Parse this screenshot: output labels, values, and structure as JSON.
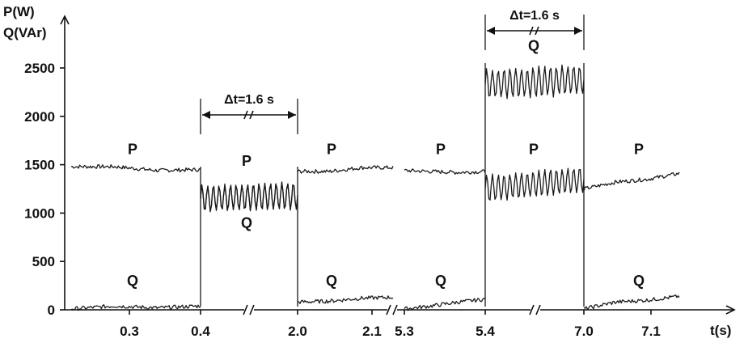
{
  "chart_data": {
    "type": "line",
    "title": "",
    "ylabel": [
      "P(W)",
      "Q(VAr)"
    ],
    "xlabel": "t(s)",
    "ylim": [
      0,
      2500
    ],
    "yticks": [
      0,
      500,
      1000,
      1500,
      2000,
      2500
    ],
    "grid": false,
    "x_segments": [
      {
        "from": 0.25,
        "to": 0.4
      },
      {
        "from": 2.0,
        "to": 2.15
      },
      {
        "from": 5.25,
        "to": 5.4
      },
      {
        "from": 7.0,
        "to": 7.15
      }
    ],
    "xticks": [
      "0.3",
      "0.4",
      "2.0",
      "2.1",
      "5.3",
      "5.4",
      "7.0",
      "7.1"
    ],
    "series": [
      {
        "name": "P",
        "segments": [
          {
            "x": [
              0.25,
              0.3,
              0.35,
              0.4
            ],
            "y": [
              1480,
              1480,
              1440,
              1450
            ]
          },
          {
            "x": [
              0.4,
              2.0
            ],
            "y": [
              1150,
              1180
            ],
            "oscillation": 150
          },
          {
            "x": [
              2.0,
              2.05,
              2.1,
              2.15
            ],
            "y": [
              1430,
              1430,
              1470,
              1470
            ]
          },
          {
            "x": [
              5.25,
              5.3,
              5.35,
              5.4
            ],
            "y": [
              1440,
              1430,
              1420,
              1430
            ]
          },
          {
            "x": [
              5.4,
              7.0
            ],
            "y": [
              1250,
              1350
            ],
            "oscillation": 150
          },
          {
            "x": [
              7.0,
              7.05,
              7.1,
              7.15
            ],
            "y": [
              1250,
              1320,
              1350,
              1410
            ]
          }
        ]
      },
      {
        "name": "Q",
        "segments": [
          {
            "x": [
              0.25,
              0.3,
              0.35,
              0.4
            ],
            "y": [
              10,
              40,
              20,
              40
            ]
          },
          {
            "x": [
              0.4,
              2.0
            ],
            "y": [
              1150,
              1180
            ],
            "oscillation": 150
          },
          {
            "x": [
              2.0,
              2.05,
              2.1,
              2.15
            ],
            "y": [
              80,
              90,
              120,
              130
            ]
          },
          {
            "x": [
              5.25,
              5.3,
              5.35,
              5.4
            ],
            "y": [
              10,
              40,
              80,
              110
            ]
          },
          {
            "x": [
              5.4,
              7.0
            ],
            "y": [
              2330,
              2380
            ],
            "oscillation": 170
          },
          {
            "x": [
              7.0,
              7.05,
              7.1,
              7.15
            ],
            "y": [
              10,
              80,
              100,
              140
            ]
          }
        ]
      }
    ],
    "annotations": [
      {
        "text": "Δt=1.6 s",
        "from": 0.4,
        "to": 2.0
      },
      {
        "text": "Δt=1.6 s",
        "from": 5.4,
        "to": 7.0
      }
    ],
    "curve_labels": [
      {
        "text": "P",
        "x": 0.31,
        "y": 1610
      },
      {
        "text": "Q",
        "x": 0.31,
        "y": 250
      },
      {
        "text": "P",
        "x": 1.0,
        "y": 1490
      },
      {
        "text": "Q",
        "x": 1.0,
        "y": 850
      },
      {
        "text": "P",
        "x": 2.08,
        "y": 1610
      },
      {
        "text": "Q",
        "x": 2.08,
        "y": 250
      },
      {
        "text": "P",
        "x": 5.32,
        "y": 1610
      },
      {
        "text": "Q",
        "x": 5.32,
        "y": 250
      },
      {
        "text": "Q",
        "x": 6.2,
        "y": 2680
      },
      {
        "text": "P",
        "x": 6.2,
        "y": 1610
      },
      {
        "text": "P",
        "x": 7.09,
        "y": 1610
      },
      {
        "text": "Q",
        "x": 7.09,
        "y": 250
      }
    ]
  }
}
